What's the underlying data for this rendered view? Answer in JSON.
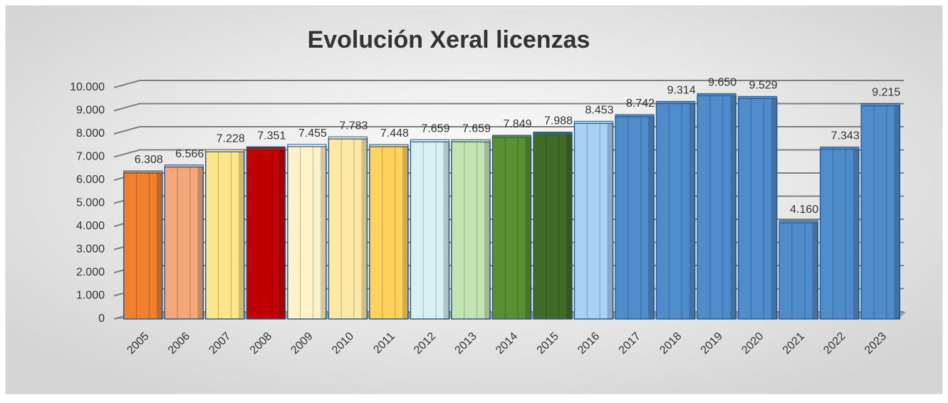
{
  "chart_data": {
    "type": "bar",
    "title": "Evolución Xeral licenzas",
    "categories": [
      "2005",
      "2006",
      "2007",
      "2008",
      "2009",
      "2010",
      "2011",
      "2012",
      "2013",
      "2014",
      "2015",
      "2016",
      "2017",
      "2018",
      "2019",
      "2020",
      "2021",
      "2022",
      "2023"
    ],
    "values": [
      6308,
      6566,
      7228,
      7351,
      7455,
      7783,
      7448,
      7659,
      7659,
      7849,
      7988,
      8453,
      8742,
      9314,
      9650,
      9529,
      4160,
      7343,
      9215
    ],
    "value_labels": [
      "6.308",
      "6.566",
      "7.228",
      "7.351",
      "7.455",
      "7.783",
      "7.448",
      "7.659",
      "7.659",
      "7.849",
      "7.988",
      "8.453",
      "8.742",
      "9.314",
      "9.650",
      "9.529",
      "4.160",
      "7.343",
      "9.215"
    ],
    "colors": [
      "#f07f2e",
      "#f4a77a",
      "#fde58a",
      "#c00000",
      "#fef3c8",
      "#fde9a5",
      "#fdd35c",
      "#d8f0f2",
      "#c4e3b2",
      "#5b8f33",
      "#3f6b27",
      "#a9d0f5",
      "#4f8ccc",
      "#4f8ccc",
      "#4f8ccc",
      "#4f8ccc",
      "#4f8ccc",
      "#4f8ccc",
      "#4f8ccc"
    ],
    "ylim": [
      0,
      10000
    ],
    "yticks": [
      0,
      {
        "value": 1000,
        "label": "1.000"
      },
      {
        "value": 2000,
        "label": "2.000"
      },
      {
        "value": 3000,
        "label": "3.000"
      },
      {
        "value": 4000,
        "label": "4.000"
      },
      {
        "value": 5000,
        "label": "5.000"
      },
      {
        "value": 6000,
        "label": "6.000"
      },
      {
        "value": 7000,
        "label": "7.000"
      },
      {
        "value": 8000,
        "label": "8.000"
      },
      {
        "value": 9000,
        "label": "9.000"
      },
      {
        "value": 10000,
        "label": "10.000"
      }
    ],
    "grid": true
  }
}
